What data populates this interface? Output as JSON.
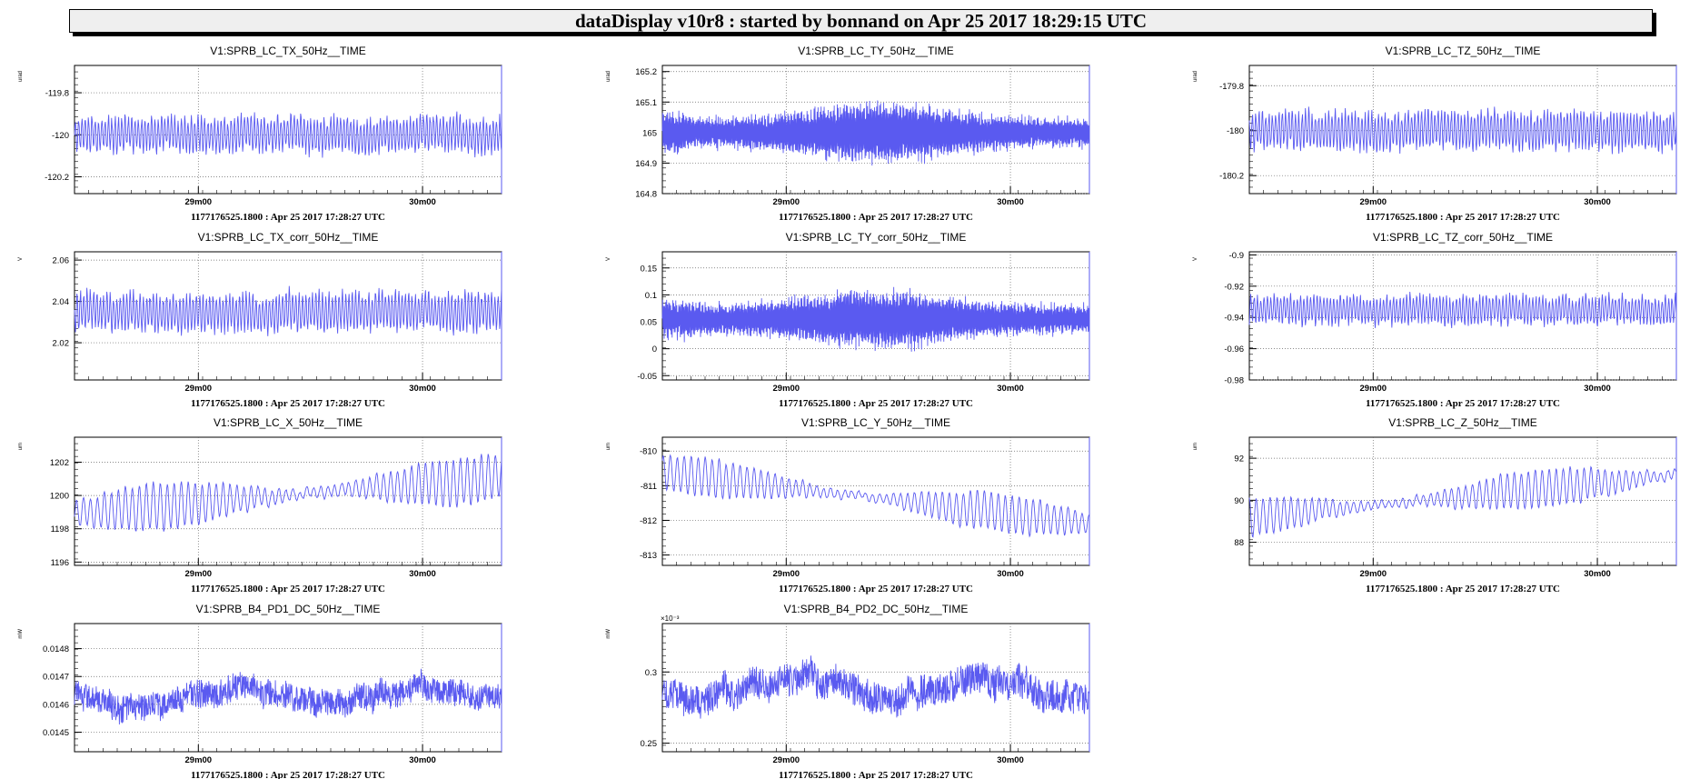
{
  "app": {
    "banner": "dataDisplay v10r8 : started by bonnand on Apr 25 2017 18:29:15 UTC"
  },
  "colors": {
    "trace": "#5a5af0",
    "frame": "#000000",
    "grid": "#555555"
  },
  "chart_data": [
    {
      "type": "line",
      "title": "V1:SPRB_LC_TX_50Hz__TIME",
      "ylabel": "urad",
      "ylim": [
        -120.28,
        -119.67
      ],
      "yticks": [
        {
          "v": -119.8,
          "t": "-119.8"
        },
        {
          "v": -120,
          "t": "-120"
        },
        {
          "v": -120.2,
          "t": "-120.2"
        }
      ],
      "xticks": [
        "29m00",
        "30m00"
      ],
      "xlabel": "1177176525.1800 : Apr 25 2017 17:28:27 UTC",
      "series": [
        {
          "center": -120.0,
          "amp": 0.1,
          "trend": 0,
          "style": "osc"
        }
      ]
    },
    {
      "type": "line",
      "title": "V1:SPRB_LC_TY_50Hz__TIME",
      "ylabel": "urad",
      "ylim": [
        164.8,
        165.22
      ],
      "yticks": [
        {
          "v": 165.2,
          "t": "165.2"
        },
        {
          "v": 165.1,
          "t": "165.1"
        },
        {
          "v": 165,
          "t": "165"
        },
        {
          "v": 164.9,
          "t": "164.9"
        },
        {
          "v": 164.8,
          "t": "164.8"
        }
      ],
      "xticks": [
        "29m00",
        "30m00"
      ],
      "xlabel": "1177176525.1800 : Apr 25 2017 17:28:27 UTC",
      "series": [
        {
          "center": 165.0,
          "amp": 0.09,
          "trend": 0,
          "style": "dense"
        }
      ]
    },
    {
      "type": "line",
      "title": "V1:SPRB_LC_TZ_50Hz__TIME",
      "ylabel": "urad",
      "ylim": [
        -180.28,
        -179.71
      ],
      "yticks": [
        {
          "v": -179.8,
          "t": "-179.8"
        },
        {
          "v": -180,
          "t": "-180"
        },
        {
          "v": -180.2,
          "t": "-180.2"
        }
      ],
      "xticks": [
        "29m00",
        "30m00"
      ],
      "xlabel": "1177176525.1800 : Apr 25 2017 17:28:27 UTC",
      "series": [
        {
          "center": -180.0,
          "amp": 0.1,
          "trend": 0,
          "style": "osc"
        }
      ]
    },
    {
      "type": "line",
      "title": "V1:SPRB_LC_TX_corr_50Hz__TIME",
      "ylabel": "V",
      "ylim": [
        2.002,
        2.064
      ],
      "yticks": [
        {
          "v": 2.06,
          "t": "2.06"
        },
        {
          "v": 2.04,
          "t": "2.04"
        },
        {
          "v": 2.02,
          "t": "2.02"
        }
      ],
      "xticks": [
        "29m00",
        "30m00"
      ],
      "xlabel": "1177176525.1800 : Apr 25 2017 17:28:27 UTC",
      "series": [
        {
          "center": 2.035,
          "amp": 0.011,
          "trend": 0,
          "style": "osc"
        }
      ]
    },
    {
      "type": "line",
      "title": "V1:SPRB_LC_TY_corr_50Hz__TIME",
      "ylabel": "V",
      "ylim": [
        -0.058,
        0.18
      ],
      "yticks": [
        {
          "v": 0.15,
          "t": "0.15"
        },
        {
          "v": 0.1,
          "t": "0.1"
        },
        {
          "v": 0.05,
          "t": "0.05"
        },
        {
          "v": 0,
          "t": "0"
        },
        {
          "v": -0.05,
          "t": "-0.05"
        }
      ],
      "xticks": [
        "29m00",
        "30m00"
      ],
      "xlabel": "1177176525.1800 : Apr 25 2017 17:28:27 UTC",
      "series": [
        {
          "center": 0.055,
          "amp": 0.05,
          "trend": 0,
          "style": "dense"
        }
      ]
    },
    {
      "type": "line",
      "title": "V1:SPRB_LC_TZ_corr_50Hz__TIME",
      "ylabel": "V",
      "ylim": [
        -0.98,
        -0.898
      ],
      "yticks": [
        {
          "v": -0.9,
          "t": "-0.9"
        },
        {
          "v": -0.92,
          "t": "-0.92"
        },
        {
          "v": -0.94,
          "t": "-0.94"
        },
        {
          "v": -0.96,
          "t": "-0.96"
        },
        {
          "v": -0.98,
          "t": "-0.98"
        }
      ],
      "xticks": [
        "29m00",
        "30m00"
      ],
      "xlabel": "1177176525.1800 : Apr 25 2017 17:28:27 UTC",
      "series": [
        {
          "center": -0.935,
          "amp": 0.011,
          "trend": 0,
          "style": "osc"
        }
      ]
    },
    {
      "type": "line",
      "title": "V1:SPRB_LC_X_50Hz__TIME",
      "ylabel": "um",
      "ylim": [
        1195.8,
        1203.5
      ],
      "yticks": [
        {
          "v": 1202,
          "t": "1202"
        },
        {
          "v": 1200,
          "t": "1200"
        },
        {
          "v": 1198,
          "t": "1198"
        },
        {
          "v": 1196,
          "t": "1196"
        }
      ],
      "xticks": [
        "29m00",
        "30m00"
      ],
      "xlabel": "1177176525.1800 : Apr 25 2017 17:28:27 UTC",
      "series": [
        {
          "center": 1198.9,
          "amp": 1.4,
          "trend": 2.2,
          "style": "smooth"
        }
      ]
    },
    {
      "type": "line",
      "title": "V1:SPRB_LC_Y_50Hz__TIME",
      "ylabel": "um",
      "ylim": [
        -813.3,
        -809.6
      ],
      "yticks": [
        {
          "v": -810,
          "t": "-810"
        },
        {
          "v": -811,
          "t": "-811"
        },
        {
          "v": -812,
          "t": "-812"
        },
        {
          "v": -813,
          "t": "-813"
        }
      ],
      "xticks": [
        "29m00",
        "30m00"
      ],
      "xlabel": "1177176525.1800 : Apr 25 2017 17:28:27 UTC",
      "series": [
        {
          "center": -810.6,
          "amp": 0.55,
          "trend": -1.5,
          "style": "smooth"
        }
      ]
    },
    {
      "type": "line",
      "title": "V1:SPRB_LC_Z_50Hz__TIME",
      "ylabel": "um",
      "ylim": [
        86.9,
        93.0
      ],
      "yticks": [
        {
          "v": 92,
          "t": "92"
        },
        {
          "v": 90,
          "t": "90"
        },
        {
          "v": 88,
          "t": "88"
        }
      ],
      "xticks": [
        "29m00",
        "30m00"
      ],
      "xlabel": "1177176525.1800 : Apr 25 2017 17:28:27 UTC",
      "series": [
        {
          "center": 89.2,
          "amp": 0.9,
          "trend": 2.0,
          "style": "smooth"
        }
      ]
    },
    {
      "type": "line",
      "title": "V1:SPRB_B4_PD1_DC_50Hz__TIME",
      "ylabel": "mW",
      "ylim": [
        0.01443,
        0.01489
      ],
      "yticks": [
        {
          "v": 0.0148,
          "t": "0.0148"
        },
        {
          "v": 0.0147,
          "t": "0.0147"
        },
        {
          "v": 0.0146,
          "t": "0.0146"
        },
        {
          "v": 0.0145,
          "t": "0.0145"
        }
      ],
      "xticks": [
        "29m00",
        "30m00"
      ],
      "xlabel": "1177176525.1800 : Apr 25 2017 17:28:27 UTC",
      "series": [
        {
          "center": 0.01463,
          "amp": 6e-05,
          "trend": 0,
          "style": "noisy"
        }
      ]
    },
    {
      "type": "line",
      "title": "V1:SPRB_B4_PD2_DC_50Hz__TIME",
      "ylabel": "mW",
      "exponent": "×10⁻³",
      "ylim": [
        0.244,
        0.334
      ],
      "yticks": [
        {
          "v": 0.3,
          "t": "0.3"
        },
        {
          "v": 0.25,
          "t": "0.25"
        }
      ],
      "xticks": [
        "29m00",
        "30m00"
      ],
      "xlabel": "1177176525.1800 : Apr 25 2017 17:28:27 UTC",
      "series": [
        {
          "center": 0.288,
          "amp": 0.014,
          "trend": 0,
          "style": "noisy"
        }
      ]
    }
  ]
}
